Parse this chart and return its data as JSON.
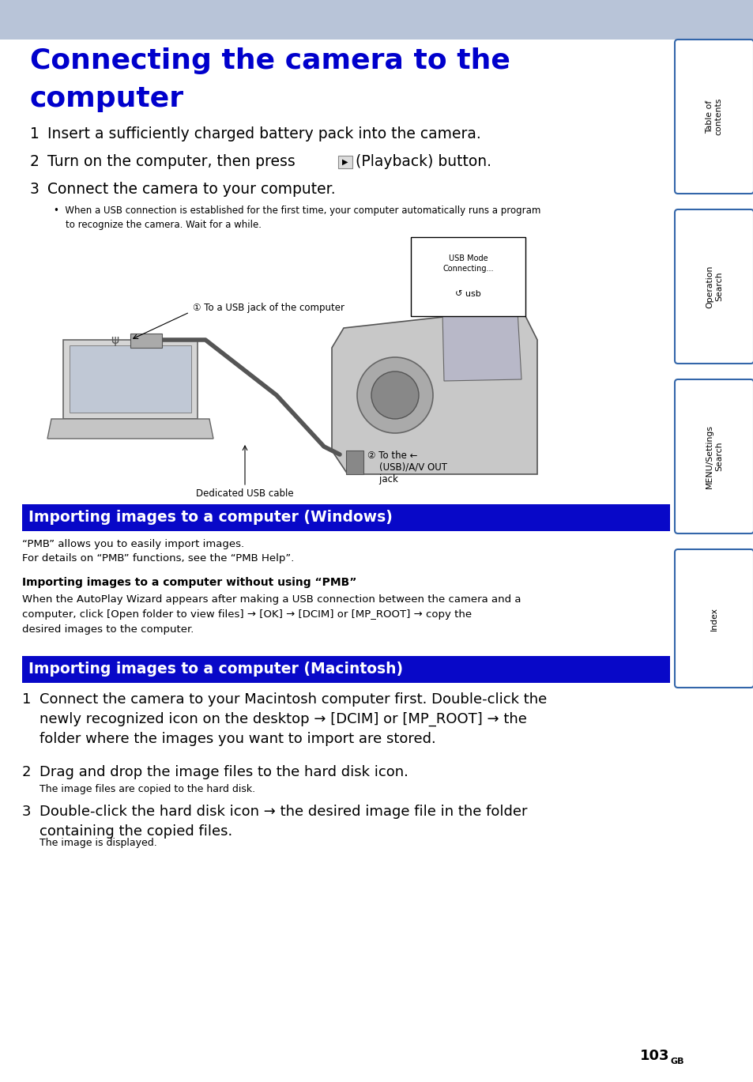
{
  "page_bg": "#ffffff",
  "header_bg": "#b8c4d8",
  "title_color": "#0000cc",
  "title_line1": "Connecting the camera to the",
  "title_line2": "computer",
  "section_bar_color": "#0808c8",
  "section_bar_text_color": "#ffffff",
  "section1_title": "Importing images to a computer (Windows)",
  "section2_title": "Importing images to a computer (Macintosh)",
  "sidebar_border": "#3366aa",
  "sidebar_labels": [
    "Table of\ncontents",
    "Operation\nSearch",
    "MENU/Settings\nSearch",
    "Index"
  ],
  "page_number": "103",
  "page_num_suffix": "GB"
}
